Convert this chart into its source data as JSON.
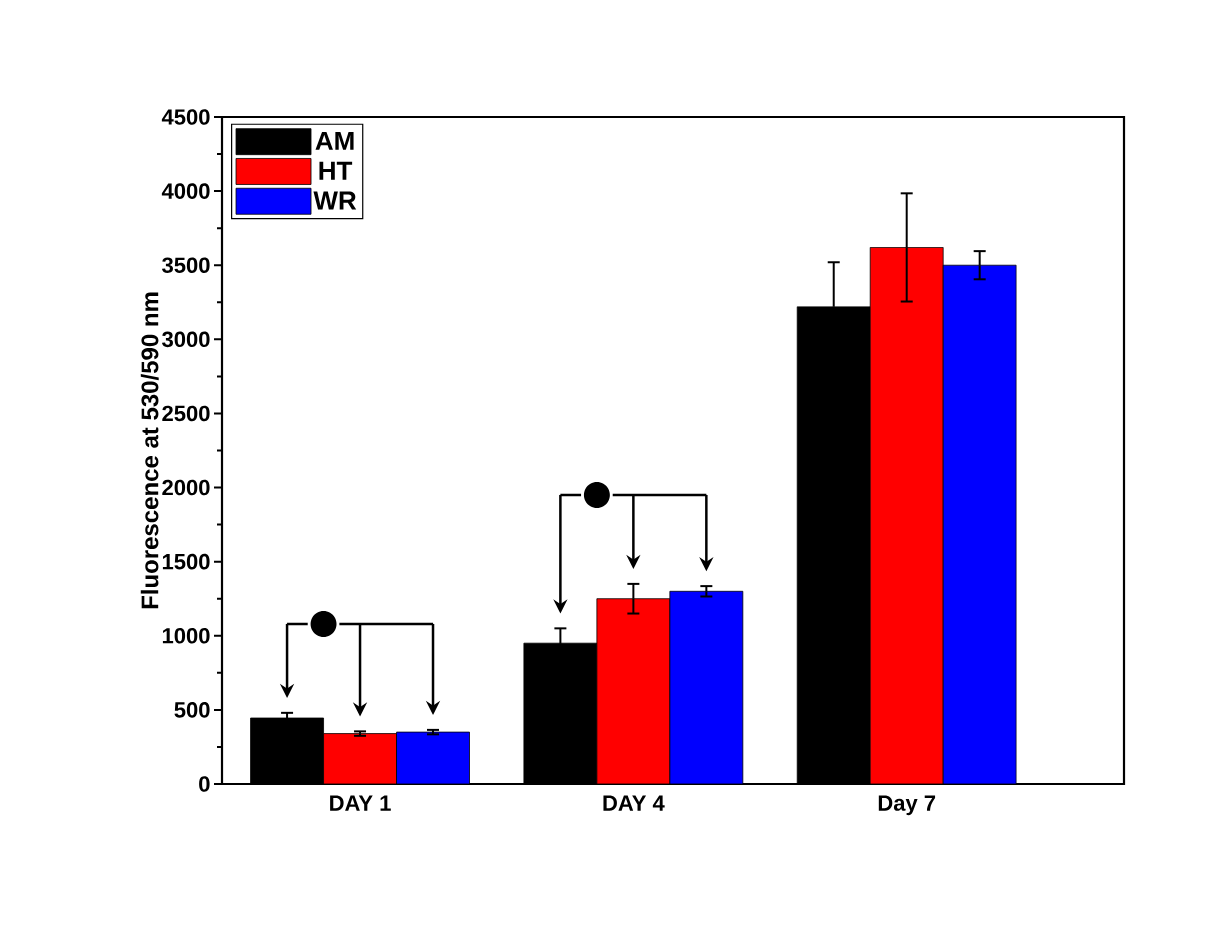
{
  "chart_data": {
    "type": "bar",
    "ylabel": "Fluorescence at 530/590 nm",
    "categories": [
      "DAY 1",
      "DAY 4",
      "Day 7"
    ],
    "series": [
      {
        "name": "AM",
        "color": "#000000",
        "values": [
          445,
          950,
          3220
        ],
        "errors": [
          35,
          100,
          300
        ]
      },
      {
        "name": "HT",
        "color": "#ff0000",
        "values": [
          340,
          1250,
          3620
        ],
        "errors": [
          15,
          100,
          365
        ]
      },
      {
        "name": "WR",
        "color": "#0000ff",
        "values": [
          350,
          1300,
          3500
        ],
        "errors": [
          15,
          35,
          95
        ]
      }
    ],
    "annotations": [
      "●",
      "●"
    ],
    "ylim": [
      0,
      4500
    ],
    "yticks": [
      0,
      500,
      1000,
      1500,
      2000,
      2500,
      3000,
      3500,
      4000,
      4500
    ],
    "grid": false,
    "legend": "top left"
  }
}
